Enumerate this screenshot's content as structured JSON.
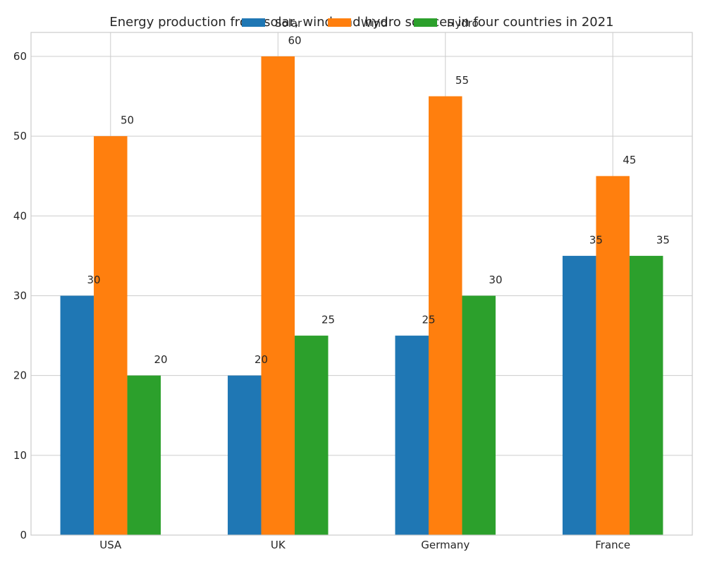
{
  "chart_data": {
    "type": "bar",
    "title": "Energy production from solar, wind and hydro sources in four countries in 2021",
    "xlabel": "",
    "ylabel": "",
    "categories": [
      "USA",
      "UK",
      "Germany",
      "France"
    ],
    "series": [
      {
        "name": "Solar",
        "values": [
          30,
          20,
          25,
          35
        ],
        "color": "#1f77b4"
      },
      {
        "name": "Wind",
        "values": [
          50,
          60,
          55,
          45
        ],
        "color": "#ff7f0e"
      },
      {
        "name": "Hydro",
        "values": [
          20,
          25,
          30,
          35
        ],
        "color": "#2ca02c"
      }
    ],
    "ylim": [
      0,
      63
    ],
    "yticks": [
      0,
      10,
      20,
      30,
      40,
      50,
      60
    ],
    "grid": true,
    "legend": "top-center"
  }
}
